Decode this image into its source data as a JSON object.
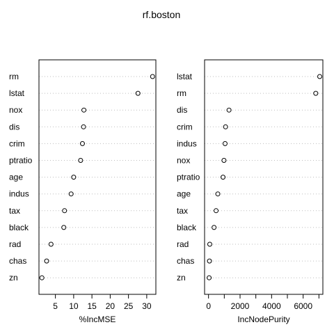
{
  "chart_data": [
    {
      "type": "scatter",
      "title": "rf.boston",
      "xlabel": "%IncMSE",
      "ylabel": "",
      "xlim": [
        0.5,
        32.5
      ],
      "xticks": [
        5,
        10,
        15,
        20,
        25,
        30
      ],
      "grid": "dotted horizontal",
      "categories": [
        "rm",
        "lstat",
        "nox",
        "dis",
        "crim",
        "ptratio",
        "age",
        "indus",
        "tax",
        "black",
        "rad",
        "chas",
        "zn"
      ],
      "values": [
        31.6,
        27.6,
        12.8,
        12.7,
        12.4,
        11.9,
        10.0,
        9.3,
        7.5,
        7.3,
        3.8,
        2.6,
        1.3
      ]
    },
    {
      "type": "scatter",
      "xlabel": "IncNodePurity",
      "ylabel": "",
      "xlim": [
        -250,
        7250
      ],
      "xticks": [
        0,
        2000,
        4000,
        6000
      ],
      "minor_ticks": [
        1000,
        3000,
        5000,
        7000
      ],
      "grid": "dotted horizontal",
      "categories": [
        "lstat",
        "rm",
        "dis",
        "crim",
        "indus",
        "nox",
        "ptratio",
        "age",
        "tax",
        "black",
        "rad",
        "chas",
        "zn"
      ],
      "values": [
        7050,
        6800,
        1300,
        1080,
        1050,
        980,
        920,
        590,
        480,
        350,
        80,
        60,
        40
      ]
    }
  ]
}
